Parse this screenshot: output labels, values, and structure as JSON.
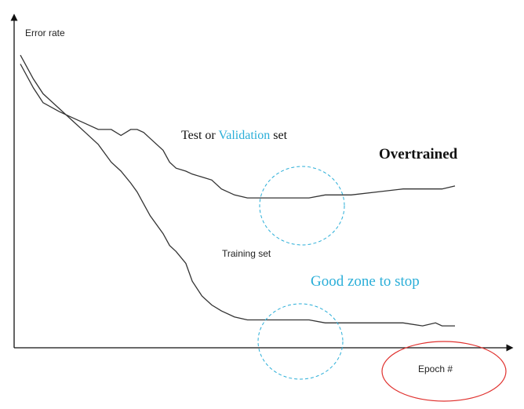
{
  "chart_data": {
    "type": "line",
    "xlabel": "Epoch #",
    "ylabel": "Error rate",
    "x": [
      0,
      4,
      7,
      12,
      16,
      20,
      24,
      28,
      31,
      34,
      36,
      38,
      40,
      44,
      46,
      48,
      51,
      53,
      56,
      59,
      62,
      66,
      70,
      76,
      82,
      89,
      94,
      102,
      110,
      118,
      124,
      128,
      130,
      134
    ],
    "series": [
      {
        "name": "Test or Validation set",
        "values": [
          93,
          85,
          80,
          77,
          75,
          73,
          71,
          71,
          69,
          71,
          71,
          70,
          68,
          64,
          60,
          58,
          57,
          56,
          55,
          54,
          51,
          49,
          48,
          48,
          48,
          48,
          49,
          49,
          50,
          51,
          51,
          51,
          51,
          52
        ]
      },
      {
        "name": "Training set",
        "values": [
          96,
          88,
          83,
          78,
          74,
          70,
          66,
          60,
          57,
          53,
          50,
          46,
          42,
          36,
          32,
          30,
          26,
          20,
          15,
          12,
          10,
          8,
          7,
          7,
          7,
          7,
          6,
          6,
          6,
          6,
          5,
          6,
          5,
          5
        ]
      }
    ],
    "xlim": [
      0,
      140
    ],
    "ylim": [
      0,
      100
    ],
    "grid": false,
    "legend": "labels placed next to curves"
  },
  "labels": {
    "test_prefix": "Test or ",
    "test_highlight": "Validation",
    "test_suffix": " set",
    "training": "Training set",
    "overtrained": "Overtrained",
    "good_zone": "Good zone to stop"
  },
  "colors": {
    "curve": "#333333",
    "axis": "#111111",
    "highlight": "#2aaed8",
    "zone_circle": "#2aaed8",
    "epoch_circle": "#e0312e"
  }
}
